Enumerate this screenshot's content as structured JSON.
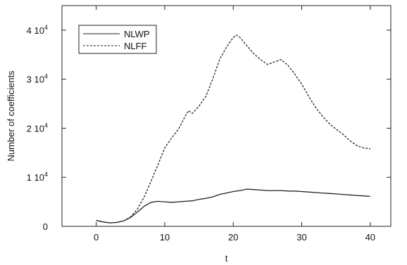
{
  "chart_data": {
    "type": "line",
    "title": "",
    "xlabel": "t",
    "ylabel": "Number of coefficients",
    "xlim": [
      -5,
      43
    ],
    "ylim": [
      0,
      45000
    ],
    "grid": false,
    "legend_position": "top-left",
    "xticks": [
      {
        "value": 0,
        "label": "0"
      },
      {
        "value": 10,
        "label": "10"
      },
      {
        "value": 20,
        "label": "20"
      },
      {
        "value": 30,
        "label": "30"
      },
      {
        "value": 40,
        "label": "40"
      }
    ],
    "yticks": [
      {
        "value": 0,
        "label": "0"
      },
      {
        "value": 10000,
        "label": "1 10",
        "exp": "4"
      },
      {
        "value": 20000,
        "label": "2 10",
        "exp": "4"
      },
      {
        "value": 30000,
        "label": "3 10",
        "exp": "4"
      },
      {
        "value": 40000,
        "label": "4 10",
        "exp": "4"
      }
    ],
    "series": [
      {
        "name": "NLWP",
        "style": "solid",
        "color": "#222222",
        "x": [
          0,
          1,
          2,
          3,
          4,
          5,
          6,
          7,
          8,
          9,
          10,
          11,
          12,
          13,
          14,
          15,
          16,
          17,
          18,
          19,
          20,
          21,
          22,
          23,
          24,
          25,
          26,
          27,
          28,
          29,
          30,
          31,
          32,
          33,
          34,
          35,
          36,
          37,
          38,
          39,
          40
        ],
        "values": [
          1200,
          900,
          700,
          800,
          1100,
          1800,
          2900,
          4100,
          4900,
          5100,
          5000,
          4900,
          5000,
          5100,
          5200,
          5500,
          5700,
          6000,
          6500,
          6800,
          7100,
          7300,
          7600,
          7500,
          7400,
          7300,
          7300,
          7300,
          7200,
          7200,
          7100,
          7000,
          6900,
          6800,
          6700,
          6600,
          6500,
          6400,
          6300,
          6200,
          6100
        ]
      },
      {
        "name": "NLFF",
        "style": "dashed",
        "color": "#222222",
        "x": [
          0,
          1,
          2,
          3,
          4,
          5,
          6,
          7,
          8,
          9,
          10,
          11,
          12,
          13,
          13.5,
          14,
          15,
          16,
          17,
          18,
          19,
          20,
          20.5,
          21,
          22,
          23,
          24,
          25,
          26,
          27,
          28,
          29,
          30,
          31,
          32,
          33,
          34,
          35,
          36,
          37,
          38,
          39,
          40
        ],
        "values": [
          1200,
          900,
          700,
          800,
          1100,
          1900,
          3500,
          6000,
          9200,
          12500,
          16000,
          18000,
          19800,
          22500,
          23600,
          23000,
          24500,
          26500,
          30000,
          34000,
          36500,
          38500,
          39000,
          38500,
          36800,
          35200,
          34000,
          33000,
          33500,
          34000,
          32800,
          31000,
          29000,
          26500,
          24300,
          22500,
          21000,
          19800,
          18800,
          17500,
          16500,
          16000,
          15800
        ]
      }
    ]
  }
}
